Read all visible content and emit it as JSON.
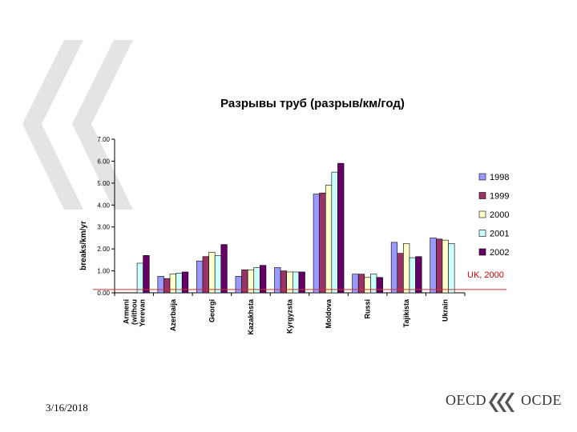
{
  "slide": {
    "date": "3/16/2018",
    "logo_left": "OECD",
    "logo_right": "OCDE"
  },
  "colors": {
    "deco_chevron": "#e3e3e3",
    "reference_line": "#cc3333",
    "logo_mark": "#555555"
  },
  "chart_data": {
    "type": "bar",
    "title": "Разрывы труб (разрыв/км/год)",
    "ylabel": "breaks/km/yr",
    "xlabel": "",
    "ylim": [
      0,
      7
    ],
    "yticks": [
      0,
      1,
      2,
      3,
      4,
      5,
      6,
      7
    ],
    "ytick_labels": [
      "0.00",
      "1.00",
      "2.00",
      "3.00",
      "4.00",
      "5.00",
      "6.00",
      "7.00"
    ],
    "grid": false,
    "legend_position": "right",
    "categories": [
      "Armeni (withou Yerevan",
      "Azerbaija",
      "Georgi",
      "Kazakhsta",
      "Kyrgyzsta",
      "Moldova",
      "Russi",
      "Tajikista",
      "Ukrain"
    ],
    "category_lines": [
      [
        "Armeni",
        "(withou",
        "Yerevan"
      ],
      [
        "Azerbaija"
      ],
      [
        "Georgi"
      ],
      [
        "Kazakhsta"
      ],
      [
        "Kyrgyzsta"
      ],
      [
        "Moldova"
      ],
      [
        "Russi"
      ],
      [
        "Tajikista"
      ],
      [
        "Ukrain"
      ]
    ],
    "series": [
      {
        "name": "1998",
        "color": "#9999ff",
        "values": [
          null,
          0.75,
          1.45,
          0.75,
          1.15,
          4.5,
          0.85,
          2.3,
          2.5
        ]
      },
      {
        "name": "1999",
        "color": "#993366",
        "values": [
          null,
          0.65,
          1.65,
          1.05,
          1.0,
          4.55,
          0.85,
          1.8,
          2.45
        ]
      },
      {
        "name": "2000",
        "color": "#ffffcc",
        "values": [
          null,
          0.85,
          1.85,
          1.05,
          0.95,
          4.9,
          0.7,
          2.25,
          2.4
        ]
      },
      {
        "name": "2001",
        "color": "#ccffff",
        "values": [
          1.35,
          0.9,
          1.7,
          1.15,
          0.95,
          5.5,
          0.85,
          1.6,
          2.25
        ]
      },
      {
        "name": "2002",
        "color": "#660066",
        "values": [
          1.7,
          0.95,
          2.2,
          1.25,
          0.95,
          5.9,
          0.7,
          1.65,
          null
        ]
      }
    ],
    "reference_line": {
      "value": 0.15,
      "label": "UK, 2000"
    }
  }
}
